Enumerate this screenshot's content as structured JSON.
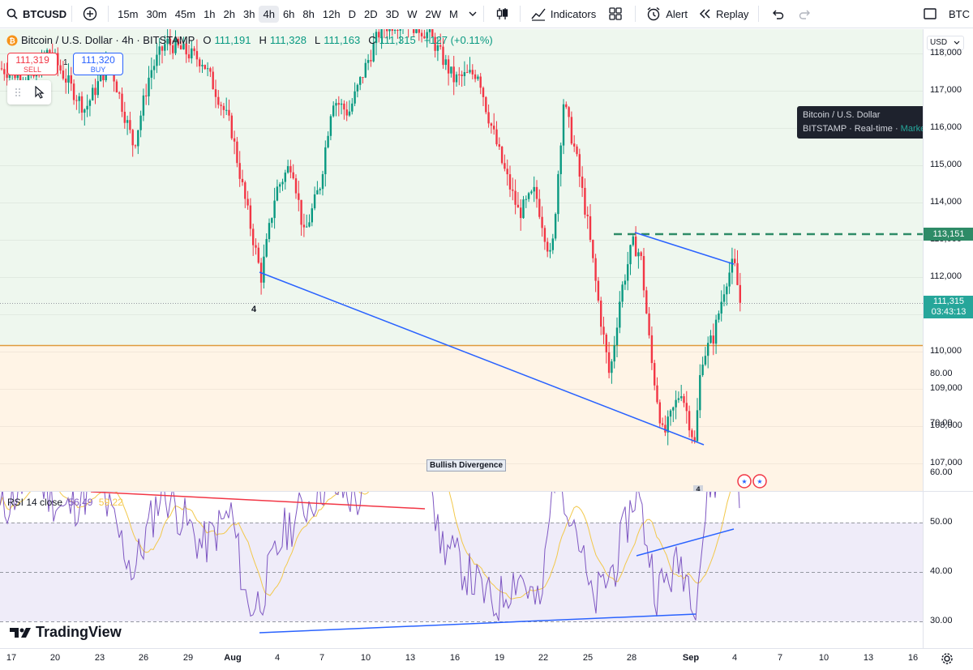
{
  "toolbar": {
    "symbol": "BTCUSD",
    "timeframes": [
      "15m",
      "30m",
      "45m",
      "1h",
      "2h",
      "3h",
      "4h",
      "6h",
      "8h",
      "12h",
      "D",
      "2D",
      "3D",
      "W",
      "2W",
      "M"
    ],
    "active_timeframe": "4h",
    "indicators_label": "Indicators",
    "alert_label": "Alert",
    "replay_label": "Replay",
    "right_label": "BTC"
  },
  "legend": {
    "title": "Bitcoin / U.S. Dollar · 4h · BITSTAMP",
    "o_label": "O",
    "o": "111,191",
    "h_label": "H",
    "h": "111,328",
    "l_label": "L",
    "l": "111,163",
    "c_label": "C",
    "c": "111,315",
    "change": "+127 (+0.11%)"
  },
  "trade": {
    "sell_price": "111,319",
    "sell_label": "SELL",
    "size": "1",
    "buy_price": "111,320",
    "buy_label": "BUY"
  },
  "tooltip": {
    "name": "Bitcoin / U.S. Dollar",
    "exchange": "BITSTAMP",
    "feed": "Real-time",
    "status": "Market open"
  },
  "price_axis": {
    "currency": "USD",
    "ticks": [
      "118,000",
      "117,000",
      "116,000",
      "115,000",
      "114,000",
      "113,000",
      "112,000",
      "111,000",
      "110,000",
      "109,000",
      "108,000",
      "107,000"
    ],
    "resistance_label": "113,151",
    "last_price": "111,315",
    "countdown": "03:43:13"
  },
  "rsi": {
    "label": "RSI 14 close",
    "value": "56.49",
    "ma_value": "59.22",
    "ticks": [
      "80.00",
      "70.00",
      "60.00",
      "50.00",
      "40.00",
      "30.00"
    ]
  },
  "time_axis": {
    "labels": [
      "17",
      "20",
      "23",
      "26",
      "29",
      "Aug",
      "4",
      "7",
      "10",
      "13",
      "16",
      "19",
      "22",
      "25",
      "28",
      "Sep",
      "4",
      "7",
      "10",
      "13",
      "16"
    ]
  },
  "annotations": {
    "wave_label": "4",
    "bullish_divergence": "Bullish Divergence",
    "event_marker": "4"
  },
  "branding": {
    "logo_text": "TradingView"
  },
  "colors": {
    "up": "#089981",
    "down": "#f23645",
    "trendline": "#2962ff",
    "rsi_line": "#7e57c2",
    "rsi_ma": "#f7c948",
    "support_line": "#e09a3c"
  }
}
